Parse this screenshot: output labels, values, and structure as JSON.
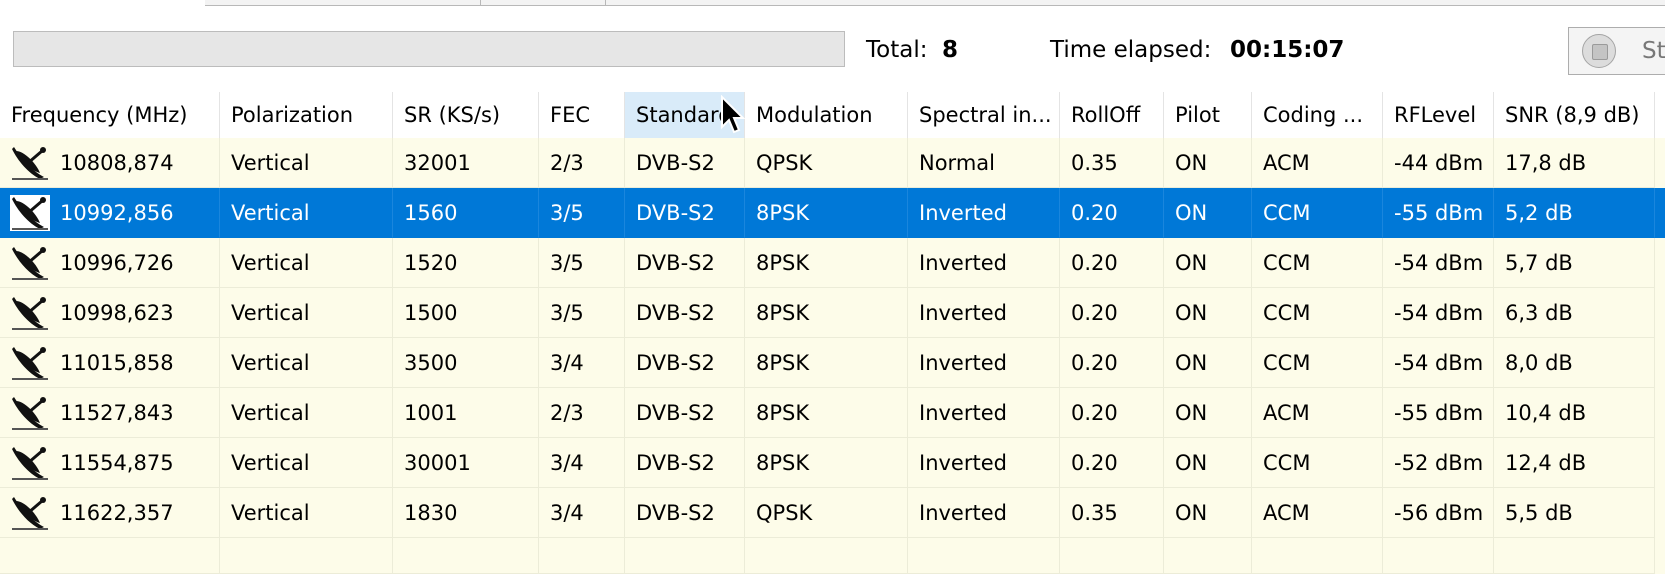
{
  "progress": {
    "value": 0
  },
  "summary": {
    "total_label": "Total:",
    "total_value": "8",
    "time_label": "Time elapsed:",
    "time_value": "00:15:07"
  },
  "stop_button": {
    "label": "Sto",
    "icon": "stop-icon"
  },
  "table": {
    "columns": [
      "Frequency (MHz)",
      "Polarization",
      "SR (KS/s)",
      "FEC",
      "Standard",
      "Modulation",
      "Spectral in...",
      "RollOff",
      "Pilot",
      "Coding ...",
      "RFLevel",
      "SNR (8,9 dB)"
    ],
    "row_icon": "satellite-dish-icon",
    "selected_row": 1,
    "rows": [
      [
        "10808,874",
        "Vertical",
        "32001",
        "2/3",
        "DVB-S2",
        "QPSK",
        "Normal",
        "0.35",
        "ON",
        "ACM",
        "-44 dBm",
        "17,8 dB"
      ],
      [
        "10992,856",
        "Vertical",
        "1560",
        "3/5",
        "DVB-S2",
        "8PSK",
        "Inverted",
        "0.20",
        "ON",
        "CCM",
        "-55 dBm",
        "5,2 dB"
      ],
      [
        "10996,726",
        "Vertical",
        "1520",
        "3/5",
        "DVB-S2",
        "8PSK",
        "Inverted",
        "0.20",
        "ON",
        "CCM",
        "-54 dBm",
        "5,7 dB"
      ],
      [
        "10998,623",
        "Vertical",
        "1500",
        "3/5",
        "DVB-S2",
        "8PSK",
        "Inverted",
        "0.20",
        "ON",
        "CCM",
        "-54 dBm",
        "6,3 dB"
      ],
      [
        "11015,858",
        "Vertical",
        "3500",
        "3/4",
        "DVB-S2",
        "8PSK",
        "Inverted",
        "0.20",
        "ON",
        "CCM",
        "-54 dBm",
        "8,0 dB"
      ],
      [
        "11527,843",
        "Vertical",
        "1001",
        "2/3",
        "DVB-S2",
        "8PSK",
        "Inverted",
        "0.20",
        "ON",
        "ACM",
        "-55 dBm",
        "10,4 dB"
      ],
      [
        "11554,875",
        "Vertical",
        "30001",
        "3/4",
        "DVB-S2",
        "8PSK",
        "Inverted",
        "0.20",
        "ON",
        "CCM",
        "-52 dBm",
        "12,4 dB"
      ],
      [
        "11622,357",
        "Vertical",
        "1830",
        "3/4",
        "DVB-S2",
        "QPSK",
        "Inverted",
        "0.35",
        "ON",
        "ACM",
        "-56 dBm",
        "5,5 dB"
      ]
    ]
  }
}
